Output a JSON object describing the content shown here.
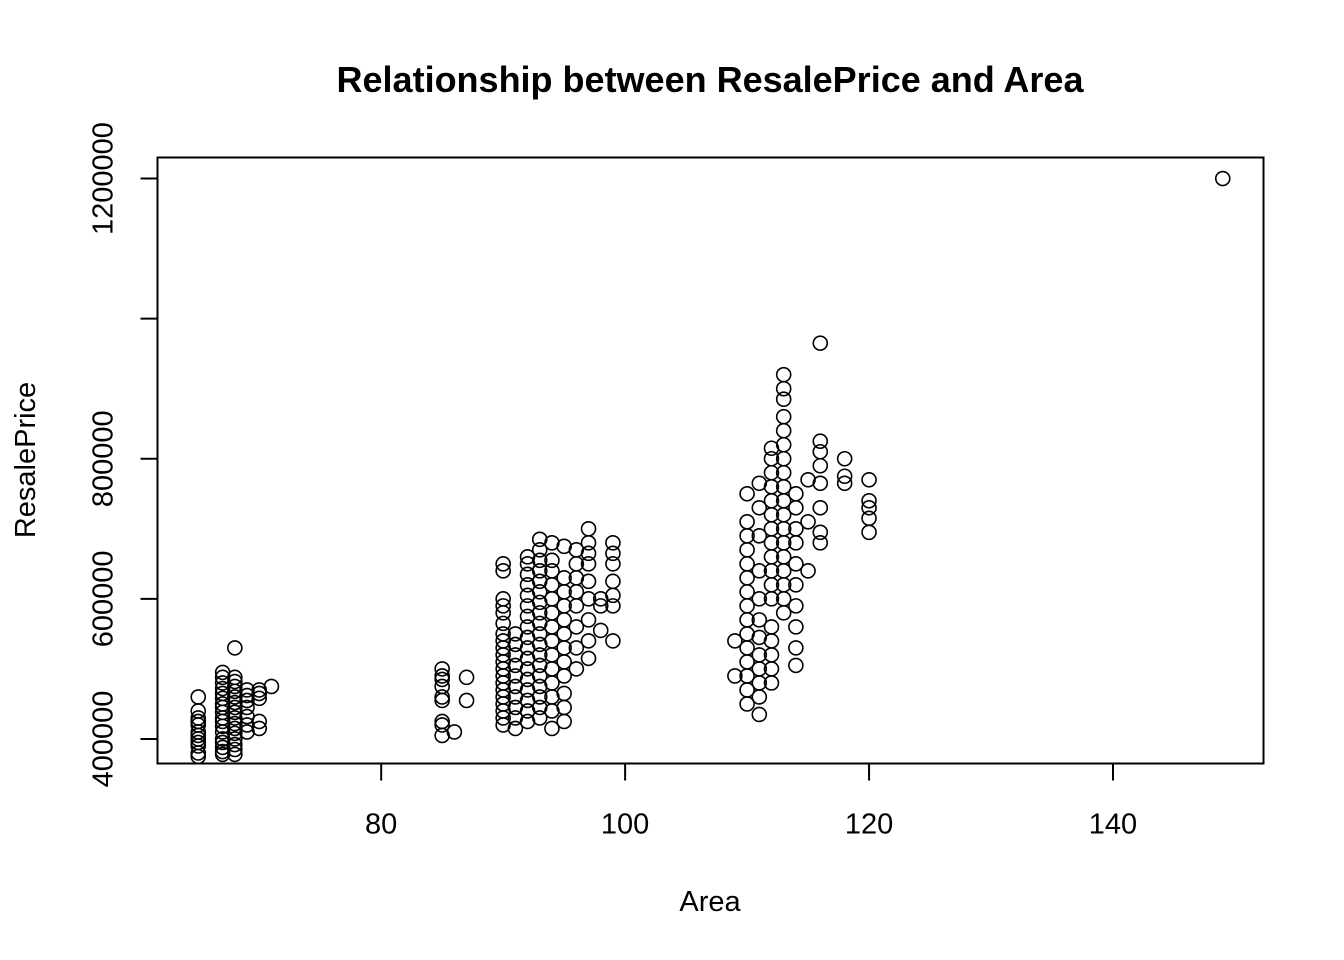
{
  "chart_data": {
    "type": "scatter",
    "title": "Relationship between ResalePrice and Area",
    "xlabel": "Area",
    "ylabel": "ResalePrice",
    "xlim": [
      61.66,
      152.34
    ],
    "ylim": [
      365000,
      1230000
    ],
    "x_ticks": [
      80,
      100,
      120,
      140
    ],
    "y_ticks": [
      400000,
      600000,
      800000,
      1000000,
      1200000
    ],
    "y_tick_labels": [
      "400000",
      "600000",
      "800000",
      "",
      "1200000"
    ],
    "grid": false,
    "legend": "none",
    "marker": "open-circle",
    "point_color": "#000000",
    "points": [
      [
        65,
        375000
      ],
      [
        65,
        380000
      ],
      [
        65,
        390000
      ],
      [
        65,
        395000
      ],
      [
        65,
        400000
      ],
      [
        65,
        405000
      ],
      [
        65,
        410000
      ],
      [
        65,
        420000
      ],
      [
        65,
        425000
      ],
      [
        65,
        430000
      ],
      [
        65,
        440000
      ],
      [
        65,
        460000
      ],
      [
        67,
        378000
      ],
      [
        67,
        382000
      ],
      [
        67,
        388000
      ],
      [
        67,
        395000
      ],
      [
        67,
        400000
      ],
      [
        67,
        410000
      ],
      [
        67,
        418000
      ],
      [
        67,
        425000
      ],
      [
        67,
        430000
      ],
      [
        67,
        438000
      ],
      [
        67,
        445000
      ],
      [
        67,
        450000
      ],
      [
        67,
        458000
      ],
      [
        67,
        465000
      ],
      [
        67,
        472000
      ],
      [
        67,
        480000
      ],
      [
        67,
        488000
      ],
      [
        67,
        495000
      ],
      [
        68,
        378000
      ],
      [
        68,
        385000
      ],
      [
        68,
        392000
      ],
      [
        68,
        400000
      ],
      [
        68,
        408000
      ],
      [
        68,
        415000
      ],
      [
        68,
        422000
      ],
      [
        68,
        430000
      ],
      [
        68,
        438000
      ],
      [
        68,
        445000
      ],
      [
        68,
        452000
      ],
      [
        68,
        460000
      ],
      [
        68,
        468000
      ],
      [
        68,
        475000
      ],
      [
        68,
        482000
      ],
      [
        68,
        488000
      ],
      [
        68,
        530000
      ],
      [
        69,
        410000
      ],
      [
        69,
        420000
      ],
      [
        69,
        432000
      ],
      [
        69,
        445000
      ],
      [
        69,
        455000
      ],
      [
        69,
        462000
      ],
      [
        69,
        470000
      ],
      [
        70,
        415000
      ],
      [
        70,
        425000
      ],
      [
        70,
        458000
      ],
      [
        70,
        465000
      ],
      [
        70,
        470000
      ],
      [
        71,
        475000
      ],
      [
        85,
        405000
      ],
      [
        85,
        420000
      ],
      [
        85,
        425000
      ],
      [
        85,
        455000
      ],
      [
        85,
        460000
      ],
      [
        85,
        475000
      ],
      [
        85,
        485000
      ],
      [
        85,
        490000
      ],
      [
        85,
        500000
      ],
      [
        86,
        410000
      ],
      [
        87,
        455000
      ],
      [
        87,
        488000
      ],
      [
        90,
        420000
      ],
      [
        90,
        430000
      ],
      [
        90,
        440000
      ],
      [
        90,
        450000
      ],
      [
        90,
        460000
      ],
      [
        90,
        470000
      ],
      [
        90,
        480000
      ],
      [
        90,
        490000
      ],
      [
        90,
        500000
      ],
      [
        90,
        510000
      ],
      [
        90,
        520000
      ],
      [
        90,
        530000
      ],
      [
        90,
        540000
      ],
      [
        90,
        550000
      ],
      [
        90,
        565000
      ],
      [
        90,
        580000
      ],
      [
        90,
        590000
      ],
      [
        90,
        600000
      ],
      [
        90,
        640000
      ],
      [
        90,
        650000
      ],
      [
        91,
        415000
      ],
      [
        91,
        430000
      ],
      [
        91,
        445000
      ],
      [
        91,
        460000
      ],
      [
        91,
        475000
      ],
      [
        91,
        490000
      ],
      [
        91,
        505000
      ],
      [
        91,
        520000
      ],
      [
        91,
        535000
      ],
      [
        91,
        550000
      ],
      [
        92,
        425000
      ],
      [
        92,
        440000
      ],
      [
        92,
        455000
      ],
      [
        92,
        470000
      ],
      [
        92,
        485000
      ],
      [
        92,
        500000
      ],
      [
        92,
        515000
      ],
      [
        92,
        530000
      ],
      [
        92,
        545000
      ],
      [
        92,
        560000
      ],
      [
        92,
        575000
      ],
      [
        92,
        590000
      ],
      [
        92,
        605000
      ],
      [
        92,
        620000
      ],
      [
        92,
        635000
      ],
      [
        92,
        650000
      ],
      [
        92,
        660000
      ],
      [
        93,
        430000
      ],
      [
        93,
        445000
      ],
      [
        93,
        460000
      ],
      [
        93,
        475000
      ],
      [
        93,
        490000
      ],
      [
        93,
        505000
      ],
      [
        93,
        520000
      ],
      [
        93,
        535000
      ],
      [
        93,
        550000
      ],
      [
        93,
        565000
      ],
      [
        93,
        580000
      ],
      [
        93,
        595000
      ],
      [
        93,
        610000
      ],
      [
        93,
        625000
      ],
      [
        93,
        640000
      ],
      [
        93,
        655000
      ],
      [
        93,
        670000
      ],
      [
        93,
        685000
      ],
      [
        94,
        415000
      ],
      [
        94,
        440000
      ],
      [
        94,
        460000
      ],
      [
        94,
        480000
      ],
      [
        94,
        500000
      ],
      [
        94,
        520000
      ],
      [
        94,
        540000
      ],
      [
        94,
        560000
      ],
      [
        94,
        580000
      ],
      [
        94,
        600000
      ],
      [
        94,
        620000
      ],
      [
        94,
        640000
      ],
      [
        94,
        655000
      ],
      [
        94,
        680000
      ],
      [
        95,
        425000
      ],
      [
        95,
        445000
      ],
      [
        95,
        465000
      ],
      [
        95,
        490000
      ],
      [
        95,
        510000
      ],
      [
        95,
        530000
      ],
      [
        95,
        550000
      ],
      [
        95,
        570000
      ],
      [
        95,
        590000
      ],
      [
        95,
        610000
      ],
      [
        95,
        630000
      ],
      [
        95,
        675000
      ],
      [
        96,
        500000
      ],
      [
        96,
        530000
      ],
      [
        96,
        560000
      ],
      [
        96,
        590000
      ],
      [
        96,
        610000
      ],
      [
        96,
        630000
      ],
      [
        96,
        650000
      ],
      [
        96,
        670000
      ],
      [
        97,
        515000
      ],
      [
        97,
        540000
      ],
      [
        97,
        570000
      ],
      [
        97,
        600000
      ],
      [
        97,
        625000
      ],
      [
        97,
        650000
      ],
      [
        97,
        665000
      ],
      [
        97,
        680000
      ],
      [
        97,
        700000
      ],
      [
        98,
        555000
      ],
      [
        98,
        590000
      ],
      [
        98,
        600000
      ],
      [
        99,
        540000
      ],
      [
        99,
        590000
      ],
      [
        99,
        605000
      ],
      [
        99,
        625000
      ],
      [
        99,
        650000
      ],
      [
        99,
        665000
      ],
      [
        99,
        680000
      ],
      [
        109,
        490000
      ],
      [
        109,
        540000
      ],
      [
        110,
        450000
      ],
      [
        110,
        470000
      ],
      [
        110,
        490000
      ],
      [
        110,
        510000
      ],
      [
        110,
        530000
      ],
      [
        110,
        550000
      ],
      [
        110,
        570000
      ],
      [
        110,
        590000
      ],
      [
        110,
        610000
      ],
      [
        110,
        630000
      ],
      [
        110,
        650000
      ],
      [
        110,
        670000
      ],
      [
        110,
        690000
      ],
      [
        110,
        710000
      ],
      [
        110,
        750000
      ],
      [
        111,
        435000
      ],
      [
        111,
        460000
      ],
      [
        111,
        480000
      ],
      [
        111,
        500000
      ],
      [
        111,
        520000
      ],
      [
        111,
        545000
      ],
      [
        111,
        570000
      ],
      [
        111,
        600000
      ],
      [
        111,
        640000
      ],
      [
        111,
        690000
      ],
      [
        111,
        730000
      ],
      [
        111,
        765000
      ],
      [
        112,
        480000
      ],
      [
        112,
        500000
      ],
      [
        112,
        520000
      ],
      [
        112,
        540000
      ],
      [
        112,
        560000
      ],
      [
        112,
        600000
      ],
      [
        112,
        620000
      ],
      [
        112,
        640000
      ],
      [
        112,
        660000
      ],
      [
        112,
        680000
      ],
      [
        112,
        700000
      ],
      [
        112,
        720000
      ],
      [
        112,
        740000
      ],
      [
        112,
        760000
      ],
      [
        112,
        780000
      ],
      [
        112,
        800000
      ],
      [
        112,
        815000
      ],
      [
        113,
        580000
      ],
      [
        113,
        600000
      ],
      [
        113,
        620000
      ],
      [
        113,
        640000
      ],
      [
        113,
        660000
      ],
      [
        113,
        680000
      ],
      [
        113,
        700000
      ],
      [
        113,
        720000
      ],
      [
        113,
        740000
      ],
      [
        113,
        760000
      ],
      [
        113,
        780000
      ],
      [
        113,
        800000
      ],
      [
        113,
        820000
      ],
      [
        113,
        840000
      ],
      [
        113,
        860000
      ],
      [
        113,
        885000
      ],
      [
        113,
        900000
      ],
      [
        113,
        920000
      ],
      [
        114,
        505000
      ],
      [
        114,
        530000
      ],
      [
        114,
        560000
      ],
      [
        114,
        590000
      ],
      [
        114,
        620000
      ],
      [
        114,
        650000
      ],
      [
        114,
        680000
      ],
      [
        114,
        700000
      ],
      [
        114,
        730000
      ],
      [
        114,
        750000
      ],
      [
        115,
        640000
      ],
      [
        115,
        710000
      ],
      [
        115,
        770000
      ],
      [
        116,
        680000
      ],
      [
        116,
        695000
      ],
      [
        116,
        730000
      ],
      [
        116,
        765000
      ],
      [
        116,
        790000
      ],
      [
        116,
        810000
      ],
      [
        116,
        825000
      ],
      [
        116,
        965000
      ],
      [
        118,
        765000
      ],
      [
        118,
        775000
      ],
      [
        118,
        800000
      ],
      [
        120,
        695000
      ],
      [
        120,
        715000
      ],
      [
        120,
        730000
      ],
      [
        120,
        740000
      ],
      [
        120,
        770000
      ],
      [
        149,
        1200000
      ]
    ]
  }
}
